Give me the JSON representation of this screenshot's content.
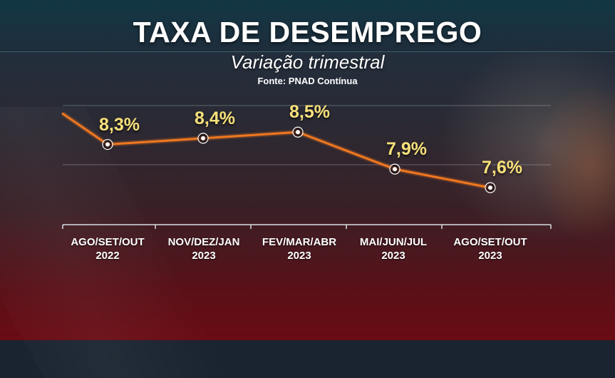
{
  "header": {
    "title": "TAXA DE DESEMPREGO",
    "subtitle": "Variação trimestral",
    "source": "Fonte: PNAD Contínua"
  },
  "chart_data": {
    "type": "line",
    "title": "TAXA DE DESEMPREGO",
    "subtitle": "Variação trimestral",
    "categories": [
      {
        "line1": "AGO/SET/OUT",
        "line2": "2022"
      },
      {
        "line1": "NOV/DEZ/JAN",
        "line2": "2023"
      },
      {
        "line1": "FEV/MAR/ABR",
        "line2": "2023"
      },
      {
        "line1": "MAI/JUN/JUL",
        "line2": "2023"
      },
      {
        "line1": "AGO/SET/OUT",
        "line2": "2023"
      }
    ],
    "values": [
      8.3,
      8.4,
      8.5,
      7.9,
      7.6
    ],
    "value_labels": [
      "8,3%",
      "8,4%",
      "8,5%",
      "7,9%",
      "7,6%"
    ],
    "lead_in_value": 8.8,
    "ylim": [
      7.0,
      9.0
    ],
    "grid": true,
    "legend": "none",
    "colors": {
      "line": "#f07820",
      "labels": "#f7e07a"
    }
  }
}
